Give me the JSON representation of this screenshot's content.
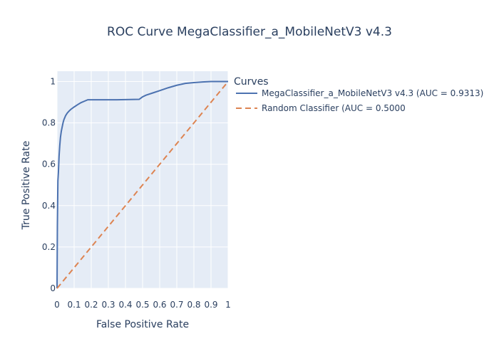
{
  "chart_data": {
    "type": "line",
    "title": "ROC Curve MegaClassifier_a_MobileNetV3 v4.3",
    "xlabel": "False Positive Rate",
    "ylabel": "True Positive Rate",
    "xlim": [
      0,
      1
    ],
    "ylim": [
      0,
      1.05
    ],
    "x_ticks": [
      "0",
      "0.1",
      "0.2",
      "0.3",
      "0.4",
      "0.5",
      "0.6",
      "0.7",
      "0.8",
      "0.9",
      "1"
    ],
    "y_ticks": [
      "0",
      "0.2",
      "0.4",
      "0.6",
      "0.8",
      "1"
    ],
    "grid": true,
    "legend": {
      "title": "Curves",
      "placement": "top-right-outside"
    },
    "series": [
      {
        "name": "MegaClassifier_a_MobileNetV3 v4.3 (AUC = 0.9313)",
        "color": "#4c72b0",
        "dash": "solid",
        "points": [
          [
            0,
            0
          ],
          [
            0.002,
            0.3
          ],
          [
            0.005,
            0.52
          ],
          [
            0.008,
            0.56
          ],
          [
            0.012,
            0.64
          ],
          [
            0.016,
            0.69
          ],
          [
            0.02,
            0.73
          ],
          [
            0.025,
            0.76
          ],
          [
            0.03,
            0.78
          ],
          [
            0.035,
            0.8
          ],
          [
            0.04,
            0.815
          ],
          [
            0.05,
            0.835
          ],
          [
            0.06,
            0.848
          ],
          [
            0.07,
            0.857
          ],
          [
            0.08,
            0.865
          ],
          [
            0.1,
            0.877
          ],
          [
            0.12,
            0.888
          ],
          [
            0.14,
            0.898
          ],
          [
            0.16,
            0.905
          ],
          [
            0.18,
            0.912
          ],
          [
            0.25,
            0.912
          ],
          [
            0.35,
            0.912
          ],
          [
            0.48,
            0.914
          ],
          [
            0.5,
            0.926
          ],
          [
            0.52,
            0.934
          ],
          [
            0.56,
            0.945
          ],
          [
            0.6,
            0.956
          ],
          [
            0.65,
            0.97
          ],
          [
            0.7,
            0.982
          ],
          [
            0.75,
            0.991
          ],
          [
            0.8,
            0.995
          ],
          [
            0.85,
            0.998
          ],
          [
            0.9,
            1.0
          ],
          [
            1.0,
            1.0
          ]
        ]
      },
      {
        "name": "Random Classifier (AUC = 0.5000",
        "color": "#dd8452",
        "dash": "dashed",
        "points": [
          [
            0,
            0
          ],
          [
            1,
            1
          ]
        ]
      }
    ]
  }
}
